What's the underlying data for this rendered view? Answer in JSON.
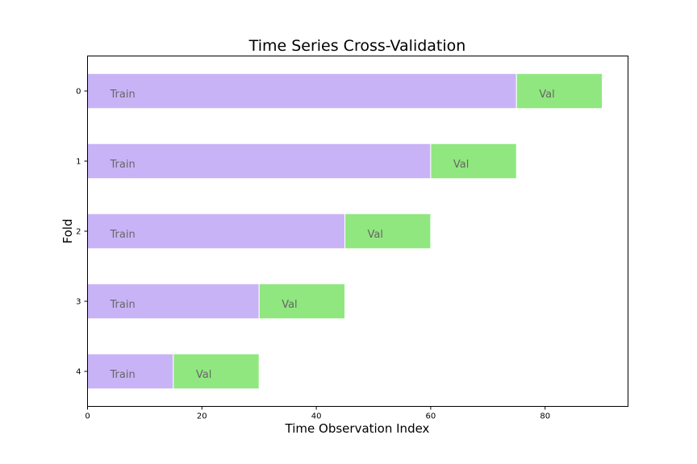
{
  "chart_data": {
    "type": "bar",
    "orientation": "horizontal",
    "stacked": true,
    "title": "Time Series Cross-Validation",
    "xlabel": "Time Observation Index",
    "ylabel": "Fold",
    "xlim": [
      0,
      94.5
    ],
    "x_ticks": [
      0,
      20,
      40,
      60,
      80
    ],
    "categories": [
      "0",
      "1",
      "2",
      "3",
      "4"
    ],
    "series": [
      {
        "label": "Train",
        "color": "#c9b3f7",
        "start": [
          0,
          0,
          0,
          0,
          0
        ],
        "values": [
          75,
          60,
          45,
          30,
          15
        ]
      },
      {
        "label": "Val",
        "color": "#90e77f",
        "start": [
          75,
          60,
          45,
          30,
          15
        ],
        "values": [
          15,
          15,
          15,
          15,
          15
        ]
      }
    ],
    "grid": false,
    "legend": "none"
  }
}
